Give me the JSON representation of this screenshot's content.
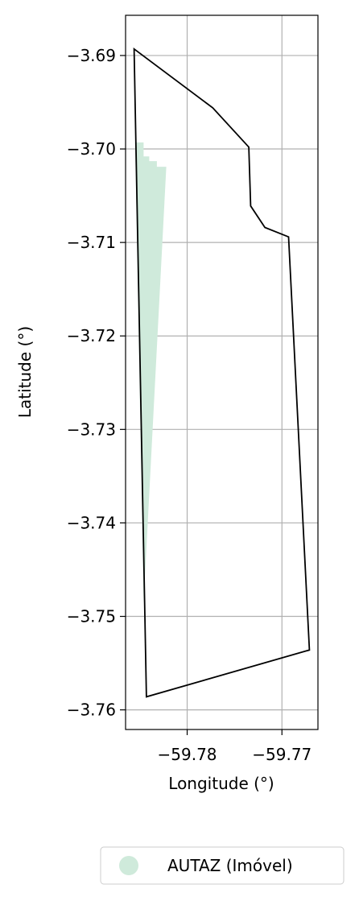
{
  "chart_data": {
    "type": "map",
    "xlabel": "Longitude (°)",
    "ylabel": "Latitude (°)",
    "xlim": [
      -59.7865,
      -59.7662
    ],
    "ylim": [
      -3.7621,
      -3.6857
    ],
    "x_ticks": [
      {
        "value": -59.78,
        "label": "−59.78"
      },
      {
        "value": -59.77,
        "label": "−59.77"
      }
    ],
    "y_ticks": [
      {
        "value": -3.69,
        "label": "−3.69"
      },
      {
        "value": -3.7,
        "label": "−3.70"
      },
      {
        "value": -3.71,
        "label": "−3.71"
      },
      {
        "value": -3.72,
        "label": "−3.72"
      },
      {
        "value": -3.73,
        "label": "−3.73"
      },
      {
        "value": -3.74,
        "label": "−3.74"
      },
      {
        "value": -3.75,
        "label": "−3.75"
      },
      {
        "value": -3.76,
        "label": "−3.76"
      }
    ],
    "grid": true,
    "legend": {
      "placement": "bottom-right, below axes",
      "entries": [
        {
          "label": "AUTAZ (Imóvel)",
          "color": "#cfeadb"
        }
      ]
    },
    "series": [
      {
        "name": "AUTAZ (Imóvel)",
        "kind": "filled-polygon",
        "color": "#cfeadb",
        "coordinates": [
          [
            -59.7855,
            -3.6993
          ],
          [
            -59.7846,
            -3.6993
          ],
          [
            -59.7846,
            -3.7008
          ],
          [
            -59.784,
            -3.7008
          ],
          [
            -59.784,
            -3.7013
          ],
          [
            -59.7832,
            -3.7013
          ],
          [
            -59.7832,
            -3.7019
          ],
          [
            -59.7822,
            -3.7019
          ],
          [
            -59.7846,
            -3.7485
          ],
          [
            -59.7855,
            -3.6993
          ]
        ]
      },
      {
        "kind": "outline-polygon",
        "color": "#000000",
        "coordinates": [
          [
            -59.7856,
            -3.6893
          ],
          [
            -59.7773,
            -3.6956
          ],
          [
            -59.7735,
            -3.6998
          ],
          [
            -59.7733,
            -3.7061
          ],
          [
            -59.7718,
            -3.7084
          ],
          [
            -59.7693,
            -3.7094
          ],
          [
            -59.7671,
            -3.7536
          ],
          [
            -59.7843,
            -3.7586
          ],
          [
            -59.7856,
            -3.6893
          ]
        ]
      }
    ]
  }
}
